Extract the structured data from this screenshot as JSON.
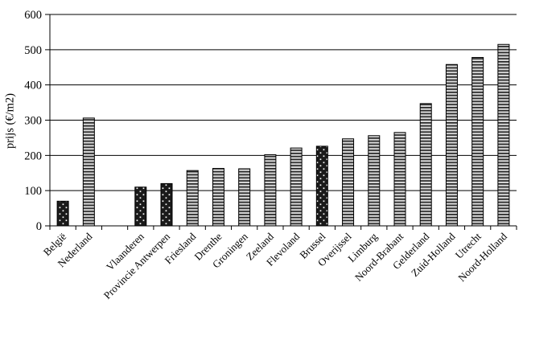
{
  "page": {
    "background": "#ffffff"
  },
  "chart_data": {
    "type": "bar",
    "title": "",
    "xlabel": "",
    "ylabel": "prijs (€/m2)",
    "ylim": [
      0,
      600
    ],
    "yticks": [
      0,
      100,
      200,
      300,
      400,
      500,
      600
    ],
    "grid": true,
    "legend_position": "none",
    "categories": [
      "België",
      "Nederland",
      "",
      "Vlaanderen",
      "Provincie Antwerpen",
      "Friesland",
      "Drenthe",
      "Groningen",
      "Zeeland",
      "Flevoland",
      "Brussel",
      "Overijssel",
      "Limburg",
      "Noord-Brabant",
      "Gelderland",
      "Zuid-Holland",
      "Utrecht",
      "Noord-Holland"
    ],
    "values": [
      70,
      306,
      null,
      110,
      120,
      157,
      163,
      162,
      202,
      221,
      226,
      247,
      256,
      265,
      347,
      458,
      478,
      515
    ],
    "bar_patterns": [
      "dots",
      "hlines",
      null,
      "dots",
      "dots",
      "hlines",
      "hlines",
      "hlines",
      "hlines",
      "hlines",
      "dots",
      "hlines",
      "hlines",
      "hlines",
      "hlines",
      "hlines",
      "hlines",
      "hlines"
    ],
    "pattern_colors": {
      "dots_bg": "#1a1a1a",
      "dots_dot": "#ffffff",
      "hlines_light": "#d8d8d8",
      "hlines_dark": "#262626",
      "bar_stroke": "#000000",
      "axis": "#000000"
    }
  }
}
